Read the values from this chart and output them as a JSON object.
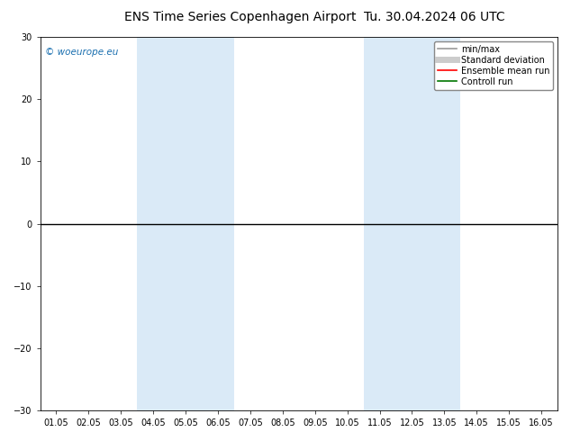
{
  "title": "ENS Time Series Copenhagen Airport",
  "date_label": "Tu. 30.04.2024 06 UTC",
  "watermark": "© woeurope.eu",
  "watermark_color": "#1a6faf",
  "ylim": [
    -30,
    30
  ],
  "yticks": [
    -30,
    -20,
    -10,
    0,
    10,
    20,
    30
  ],
  "xlabel_dates": [
    "01.05",
    "02.05",
    "03.05",
    "04.05",
    "05.05",
    "06.05",
    "07.05",
    "08.05",
    "09.05",
    "10.05",
    "11.05",
    "12.05",
    "13.05",
    "14.05",
    "15.05",
    "16.05"
  ],
  "background_color": "#ffffff",
  "plot_bg_color": "#ffffff",
  "shaded_regions": [
    {
      "xstart": 3,
      "xend": 5,
      "color": "#daeaf7"
    },
    {
      "xstart": 10,
      "xend": 12,
      "color": "#daeaf7"
    }
  ],
  "hline_y": 0,
  "hline_color": "#000000",
  "legend_items": [
    {
      "label": "min/max",
      "color": "#999999",
      "lw": 1.2,
      "style": "-"
    },
    {
      "label": "Standard deviation",
      "color": "#cccccc",
      "lw": 5,
      "style": "-"
    },
    {
      "label": "Ensemble mean run",
      "color": "#ff0000",
      "lw": 1.2,
      "style": "-"
    },
    {
      "label": "Controll run",
      "color": "#007700",
      "lw": 1.2,
      "style": "-"
    }
  ],
  "title_fontsize": 10,
  "date_fontsize": 10,
  "tick_fontsize": 7,
  "watermark_fontsize": 7.5,
  "legend_fontsize": 7,
  "fig_width": 6.34,
  "fig_height": 4.9,
  "dpi": 100
}
